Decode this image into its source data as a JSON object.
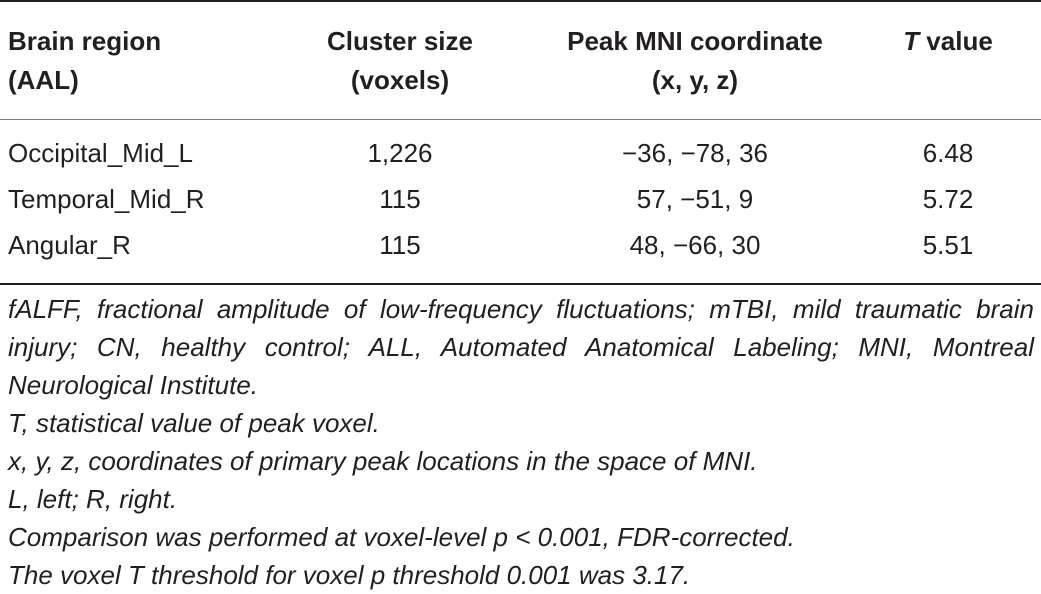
{
  "table": {
    "headers": {
      "region_line1": "Brain region",
      "region_line2": "(AAL)",
      "cluster_line1": "Cluster size",
      "cluster_line2": "(voxels)",
      "peak_line1": "Peak MNI coordinate",
      "peak_line2": "(x, y, z)",
      "t_symbol": "T",
      "t_rest": " value"
    },
    "rows": [
      {
        "region": "Occipital_Mid_L",
        "cluster": "1,226",
        "peak": "−36, −78, 36",
        "t": "6.48"
      },
      {
        "region": "Temporal_Mid_R",
        "cluster": "115",
        "peak": "57, −51, 9",
        "t": "5.72"
      },
      {
        "region": "Angular_R",
        "cluster": "115",
        "peak": "48, −66, 30",
        "t": "5.51"
      }
    ]
  },
  "footnotes": [
    "fALFF, fractional amplitude of low-frequency fluctuations; mTBI, mild traumatic brain injury; CN, healthy control; ALL, Automated Anatomical Labeling; MNI, Montreal Neurological Institute.",
    "T, statistical value of peak voxel.",
    "x, y, z, coordinates of primary peak locations in the space of MNI.",
    "L, left; R, right.",
    "Comparison was performed at voxel-level p < 0.001, FDR-corrected.",
    "The voxel T threshold for voxel p threshold 0.001 was 3.17."
  ]
}
